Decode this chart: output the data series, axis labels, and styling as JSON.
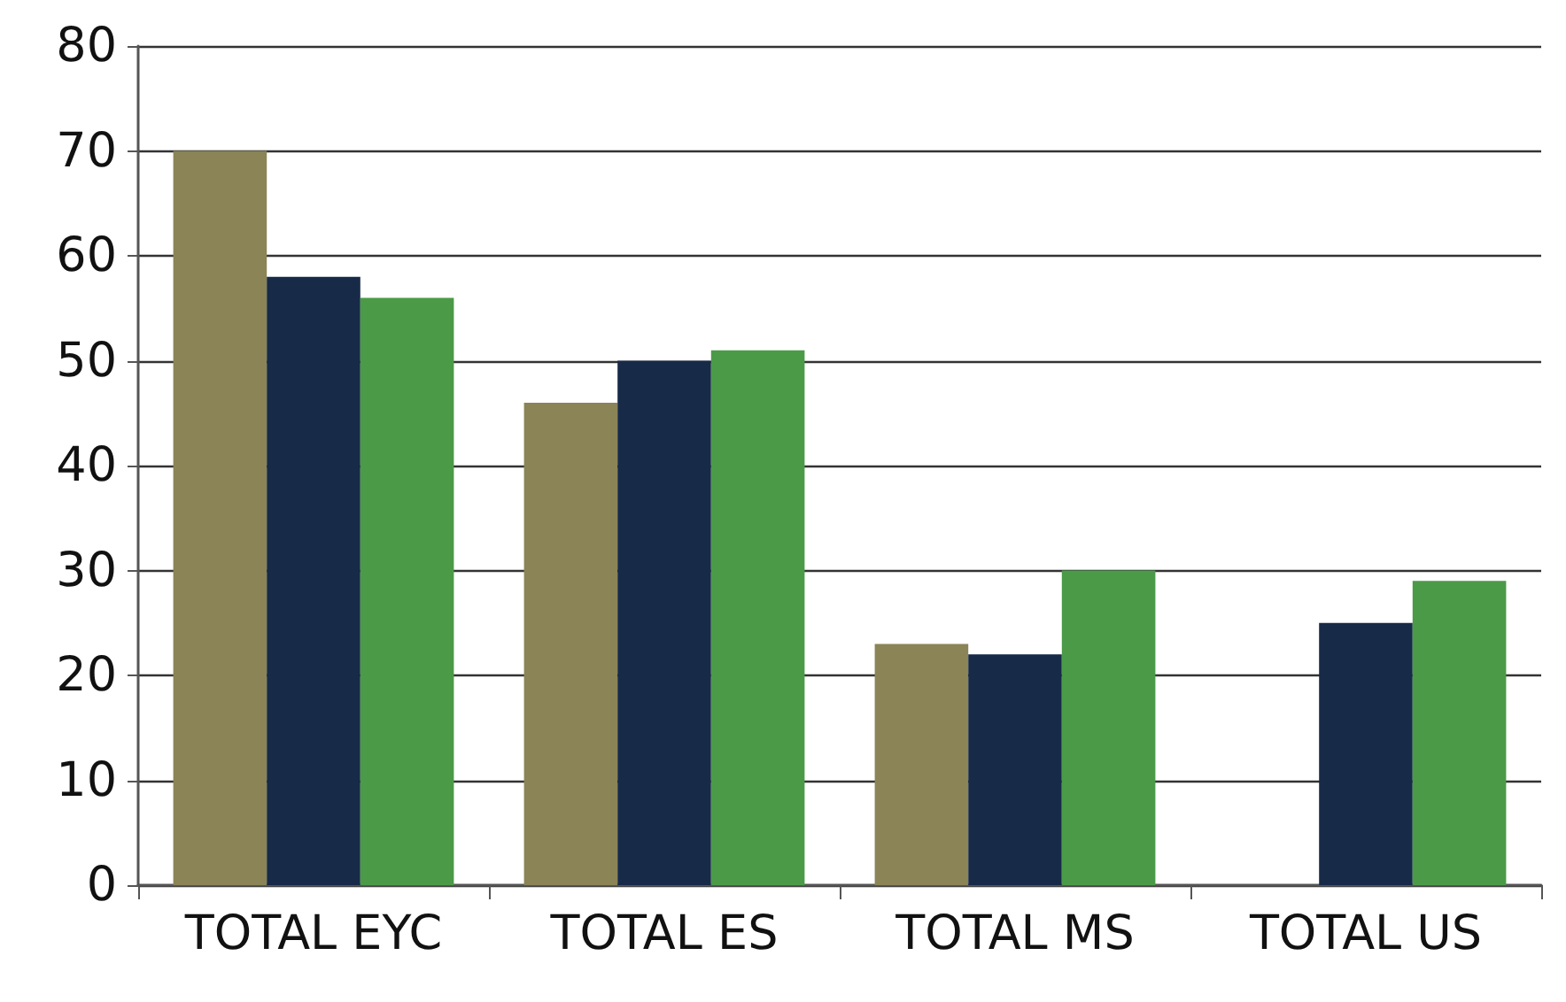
{
  "chart_data": {
    "type": "bar",
    "categories": [
      "TOTAL EYC",
      "TOTAL ES",
      "TOTAL MS",
      "TOTAL US"
    ],
    "series": [
      {
        "color": "#8a8456",
        "values": [
          70,
          46,
          23,
          null
        ]
      },
      {
        "color": "#172a48",
        "values": [
          58,
          50,
          22,
          25
        ]
      },
      {
        "color": "#4b9a48",
        "values": [
          56,
          51,
          30,
          29
        ]
      }
    ],
    "ylim": [
      0,
      80
    ],
    "yticks": [
      0,
      10,
      20,
      30,
      40,
      50,
      60,
      70,
      80
    ],
    "grid": "y"
  }
}
